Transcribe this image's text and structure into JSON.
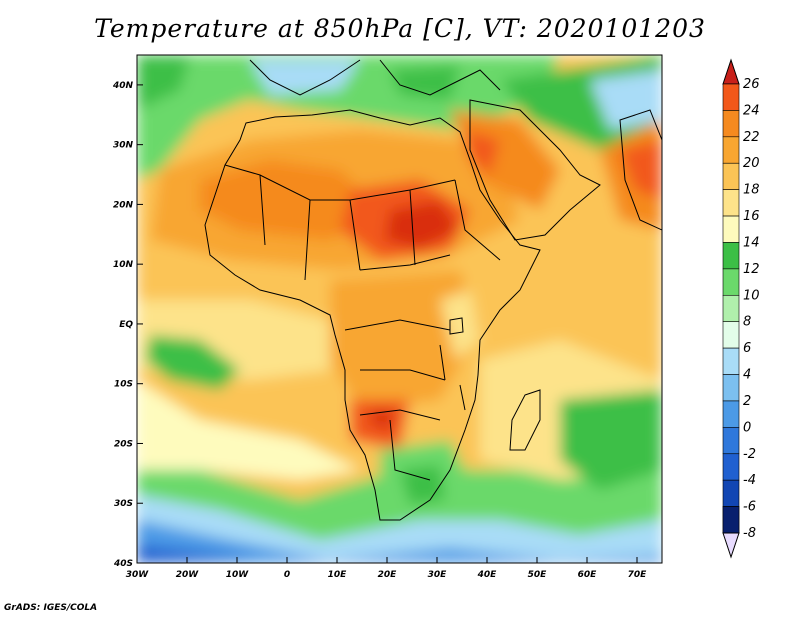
{
  "title": "Temperature at 850hPa [C], VT: 2020101203",
  "credit": "GrADS: IGES/COLA",
  "map": {
    "lon_range": [
      -30,
      75
    ],
    "lat_range": [
      -40,
      45
    ],
    "lon_ticks": [
      {
        "lon": -30,
        "label": "30W"
      },
      {
        "lon": -20,
        "label": "20W"
      },
      {
        "lon": -10,
        "label": "10W"
      },
      {
        "lon": 0,
        "label": "0"
      },
      {
        "lon": 10,
        "label": "10E"
      },
      {
        "lon": 20,
        "label": "20E"
      },
      {
        "lon": 30,
        "label": "30E"
      },
      {
        "lon": 40,
        "label": "40E"
      },
      {
        "lon": 50,
        "label": "50E"
      },
      {
        "lon": 60,
        "label": "60E"
      },
      {
        "lon": 70,
        "label": "70E"
      }
    ],
    "lat_ticks": [
      {
        "lat": 40,
        "label": "40N"
      },
      {
        "lat": 30,
        "label": "30N"
      },
      {
        "lat": 20,
        "label": "20N"
      },
      {
        "lat": 10,
        "label": "10N"
      },
      {
        "lat": 0,
        "label": "EQ"
      },
      {
        "lat": -10,
        "label": "10S"
      },
      {
        "lat": -20,
        "label": "20S"
      },
      {
        "lat": -30,
        "label": "30S"
      },
      {
        "lat": -40,
        "label": "40S"
      }
    ]
  },
  "colorbar": {
    "levels": [
      {
        "label": "26",
        "color": "#d92e0d"
      },
      {
        "label": "24",
        "color": "#f2581a"
      },
      {
        "label": "22",
        "color": "#f58a1f"
      },
      {
        "label": "20",
        "color": "#f8a631"
      },
      {
        "label": "18",
        "color": "#fbc456"
      },
      {
        "label": "16",
        "color": "#fde38a"
      },
      {
        "label": "14",
        "color": "#fefbbd"
      },
      {
        "label": "12",
        "color": "#3cbf46"
      },
      {
        "label": "10",
        "color": "#6bd96b"
      },
      {
        "label": "8",
        "color": "#b0f0ac"
      },
      {
        "label": "6",
        "color": "#e3fde9"
      },
      {
        "label": "4",
        "color": "#a9dcf7"
      },
      {
        "label": "2",
        "color": "#7cc0f0"
      },
      {
        "label": "0",
        "color": "#4c9ae6"
      },
      {
        "label": "-2",
        "color": "#2f78db"
      },
      {
        "label": "-4",
        "color": "#2060d0"
      },
      {
        "label": "-6",
        "color": "#1246b3"
      },
      {
        "label": "-8",
        "color": "#0b2a8a"
      }
    ],
    "over_color": "#c8201a",
    "under_color": "#e8dcff",
    "bottom_box_color": "#08206e"
  }
}
